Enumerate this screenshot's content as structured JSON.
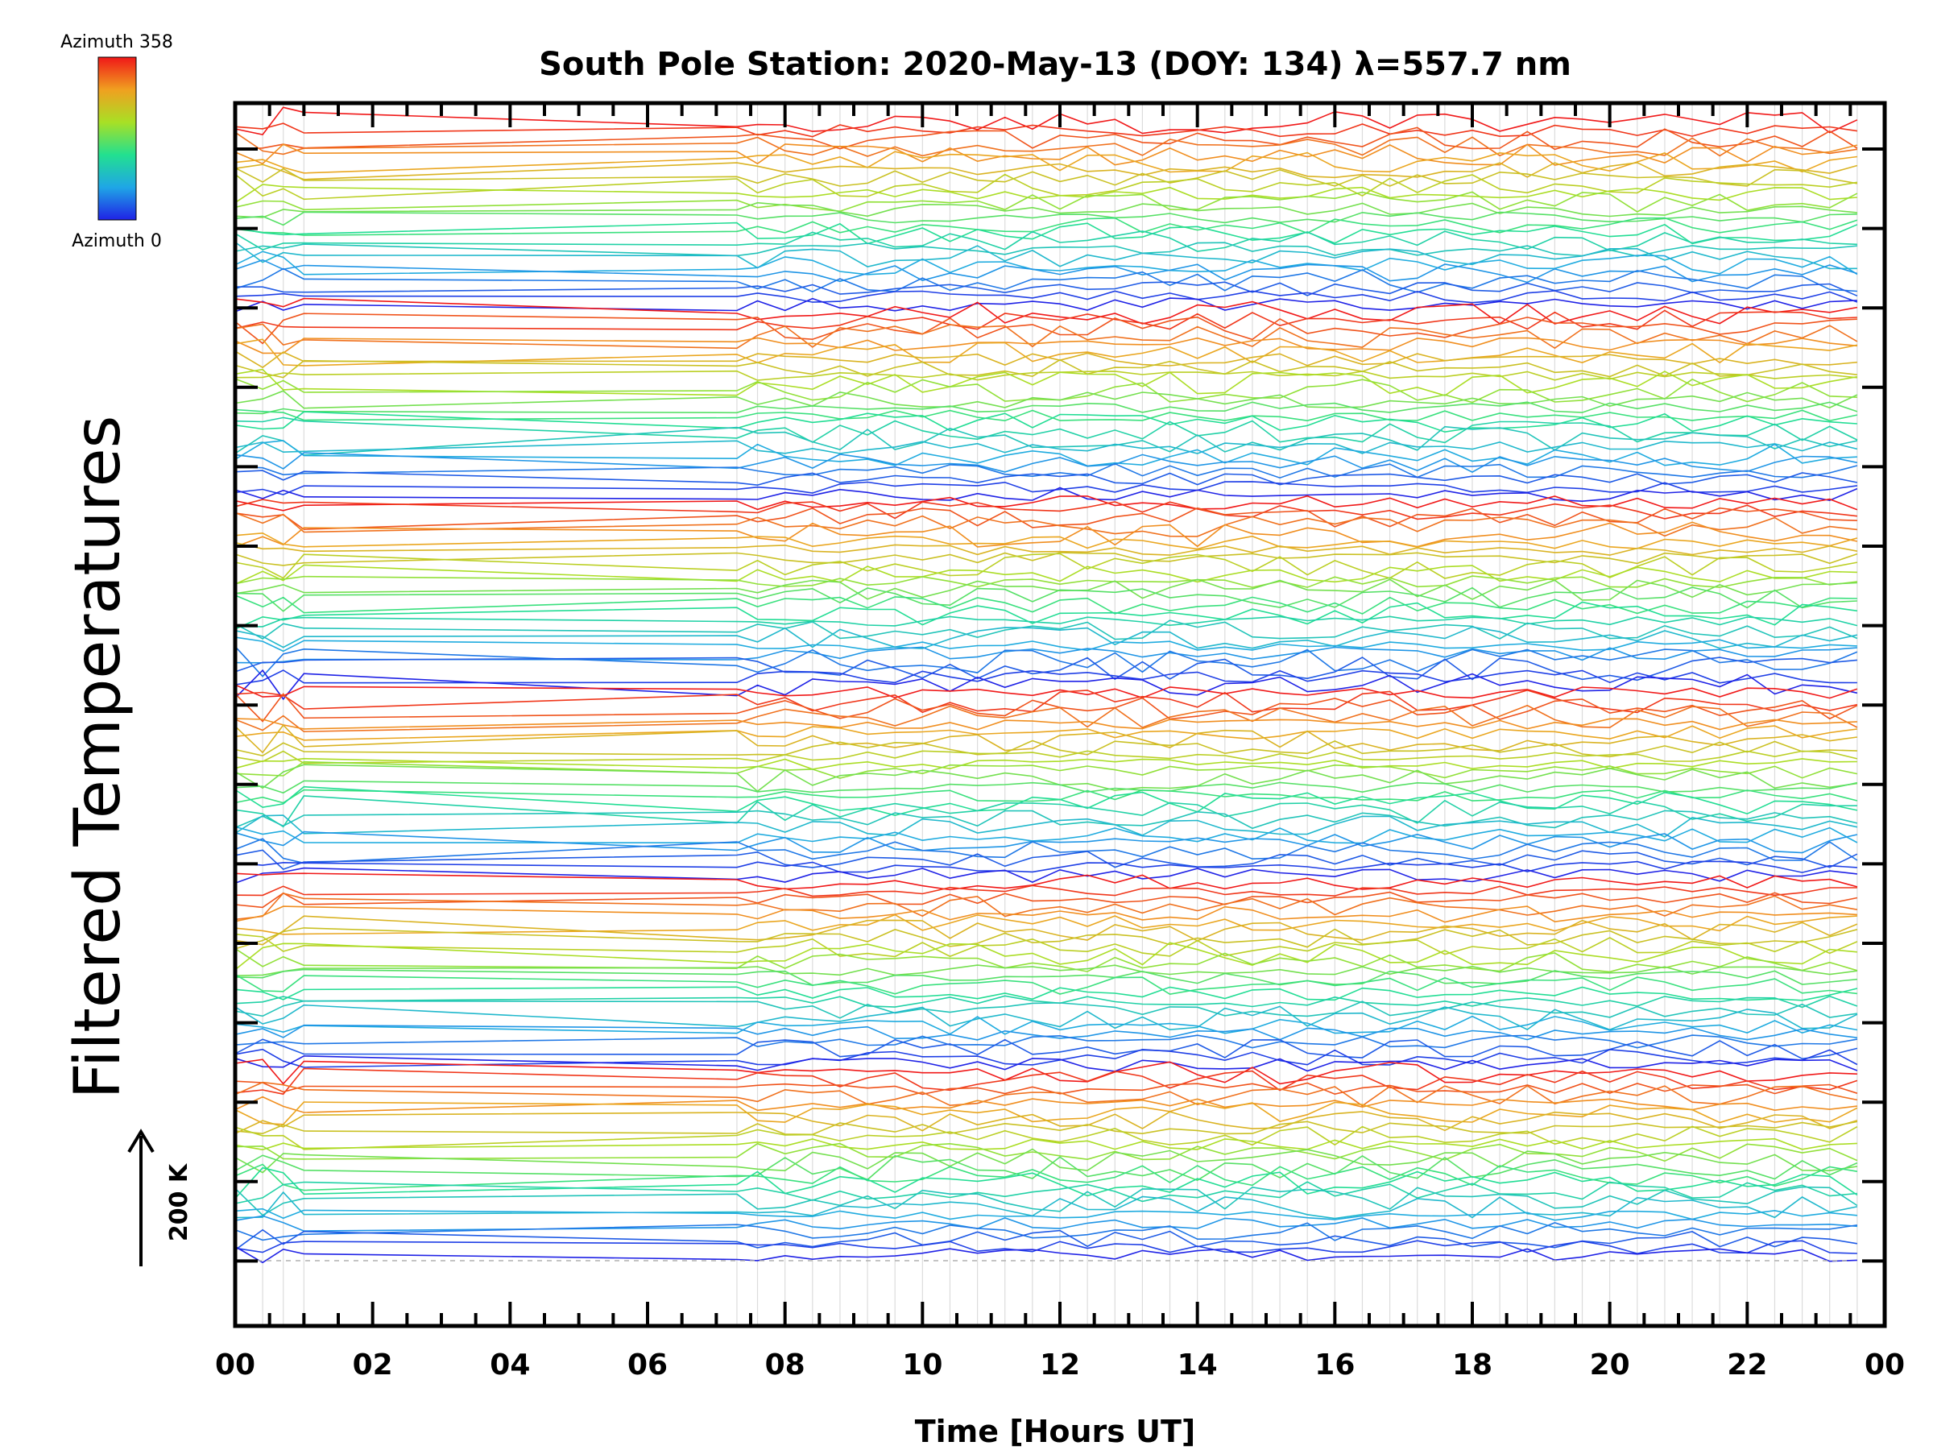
{
  "chart_data": {
    "type": "line",
    "title": "South Pole Station: 2020-May-13 (DOY: 134) λ=557.7 nm",
    "xlabel": "Time [Hours UT]",
    "ylabel": "Filtered Temperatures",
    "xlim": [
      0,
      24
    ],
    "xticks": [
      "00",
      "02",
      "04",
      "06",
      "08",
      "10",
      "12",
      "14",
      "16",
      "18",
      "20",
      "22",
      "00"
    ],
    "colorbar": {
      "top_label": "Azimuth 358",
      "bottom_label": "Azimuth 0",
      "min": 0,
      "max": 358
    },
    "scale_bar": {
      "label": "200 K",
      "kelvin": 200
    },
    "n_stacked_traces": 144,
    "data_gap_hours": [
      1.0,
      7.3
    ],
    "sample_times_hours": [
      0.0,
      0.4,
      0.7,
      1.0,
      7.3,
      7.6,
      8.0,
      8.4,
      8.8,
      9.2,
      9.6,
      10.0,
      10.4,
      10.8,
      11.2,
      11.6,
      12.0,
      12.4,
      12.8,
      13.2,
      13.6,
      14.0,
      14.4,
      14.8,
      15.2,
      15.6,
      16.0,
      16.4,
      16.8,
      17.2,
      17.6,
      18.0,
      18.4,
      18.8,
      19.2,
      19.6,
      20.0,
      20.4,
      20.8,
      21.2,
      21.6,
      22.0,
      22.4,
      22.8,
      23.2,
      23.6
    ]
  }
}
